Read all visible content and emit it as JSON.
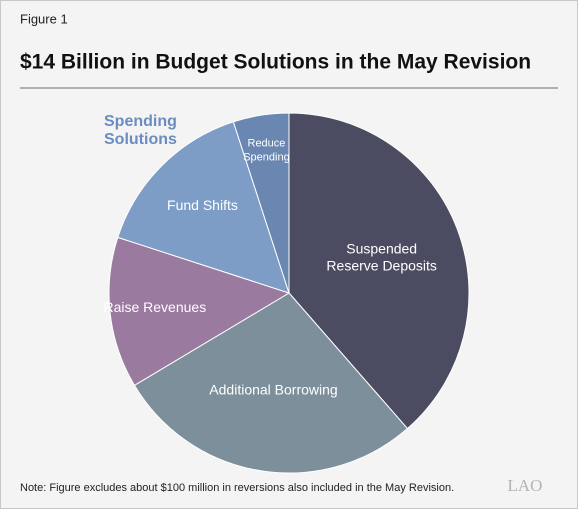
{
  "figure_label": "Figure 1",
  "chart_data": {
    "type": "pie",
    "title": "$14 Billion in Budget Solutions in the May Revision",
    "categories": [
      [
        "Suspended",
        "Reserve Deposits"
      ],
      [
        "Additional Borrowing"
      ],
      [
        "Raise Revenues"
      ],
      [
        "Fund Shifts"
      ],
      [
        "Reduce",
        "Spending"
      ]
    ],
    "values": [
      5.4,
      3.9,
      1.9,
      2.1,
      0.7
    ],
    "colors": [
      "#4b4c62",
      "#7e8f9c",
      "#9a7a9f",
      "#7d9dc6",
      "#6987b0"
    ],
    "annotation": [
      "Spending",
      "Solutions"
    ],
    "note": "Note: Figure excludes about $100 million in reversions also included in the May Revision.",
    "logo": "LAO"
  }
}
